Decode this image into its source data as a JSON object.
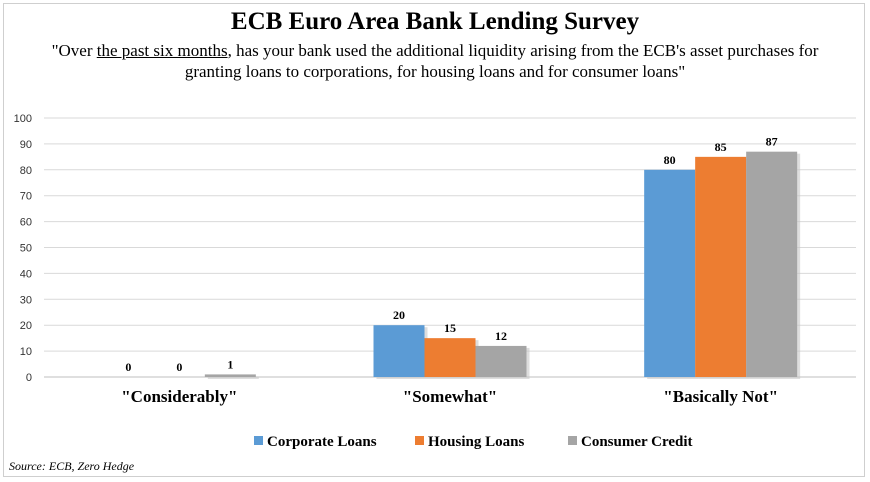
{
  "title": "ECB Euro Area Bank Lending Survey",
  "subtitle": {
    "before": "\"Over ",
    "underlined": "the past six months",
    "after": ", has your bank used the additional liquidity arising from the ECB's asset purchases for granting loans to corporations, for housing loans and for consumer loans\""
  },
  "source": "Source: ECB,  Zero Hedge",
  "chart_data": {
    "type": "bar",
    "title": "ECB Euro Area Bank Lending Survey",
    "categories": [
      "\"Considerably\"",
      "\"Somewhat\"",
      "\"Basically Not\""
    ],
    "series": [
      {
        "name": "Corporate Loans",
        "values": [
          0,
          20,
          80
        ],
        "color": "#5b9bd5"
      },
      {
        "name": "Housing Loans",
        "values": [
          0,
          15,
          85
        ],
        "color": "#ed7d31"
      },
      {
        "name": "Consumer Credit",
        "values": [
          1,
          12,
          87
        ],
        "color": "#a5a5a5"
      }
    ],
    "ylim": [
      0,
      100
    ],
    "yticks": [
      0,
      10,
      20,
      30,
      40,
      50,
      60,
      70,
      80,
      90,
      100
    ],
    "grid": true,
    "legend": "bottom"
  }
}
